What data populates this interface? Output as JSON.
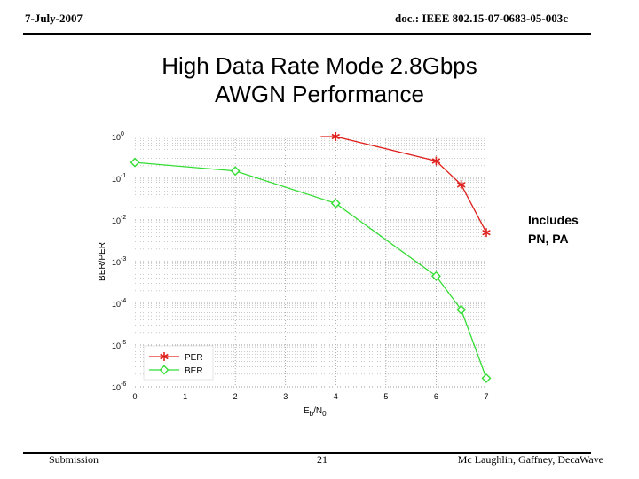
{
  "header": {
    "date": "7-July-2007",
    "doc": "doc.: IEEE 802.15-07-0683-05-003c"
  },
  "slide": {
    "title_line1": "High Data Rate Mode 2.8Gbps",
    "title_line2": "AWGN Performance"
  },
  "note": {
    "line1": "Includes",
    "line2": "PN, PA"
  },
  "footer": {
    "left": "Submission",
    "page": "21",
    "right": "Mc Laughlin, Gaffney,  DecaWave"
  },
  "colors": {
    "per": "#e0201c",
    "ber": "#33dd33",
    "grid": "#777777"
  },
  "chart_data": {
    "type": "line",
    "xlabel": "Eb/N0",
    "ylabel": "BER/PER",
    "xlim": [
      0,
      7
    ],
    "ylim": [
      1e-06,
      1
    ],
    "yscale": "log",
    "x_ticks": [
      "0",
      "1",
      "2",
      "3",
      "4",
      "5",
      "6",
      "7"
    ],
    "y_ticks": [
      {
        "base": "10",
        "exp": "0"
      },
      {
        "base": "10",
        "exp": "-1"
      },
      {
        "base": "10",
        "exp": "-2"
      },
      {
        "base": "10",
        "exp": "-3"
      },
      {
        "base": "10",
        "exp": "-4"
      },
      {
        "base": "10",
        "exp": "-5"
      },
      {
        "base": "10",
        "exp": "-6"
      }
    ],
    "grid": true,
    "legend": "bottom-left",
    "series": [
      {
        "name": "PER",
        "marker": "star",
        "color": "#e0201c",
        "x": [
          4,
          6,
          6.5,
          7
        ],
        "y": [
          1.0,
          0.26,
          0.07,
          0.005
        ],
        "line_start_x": 3.7
      },
      {
        "name": "BER",
        "marker": "diamond",
        "color": "#33dd33",
        "x": [
          0,
          2,
          4,
          6,
          6.5,
          7
        ],
        "y": [
          0.24,
          0.15,
          0.025,
          0.00045,
          7e-05,
          1.6e-06
        ]
      }
    ]
  }
}
